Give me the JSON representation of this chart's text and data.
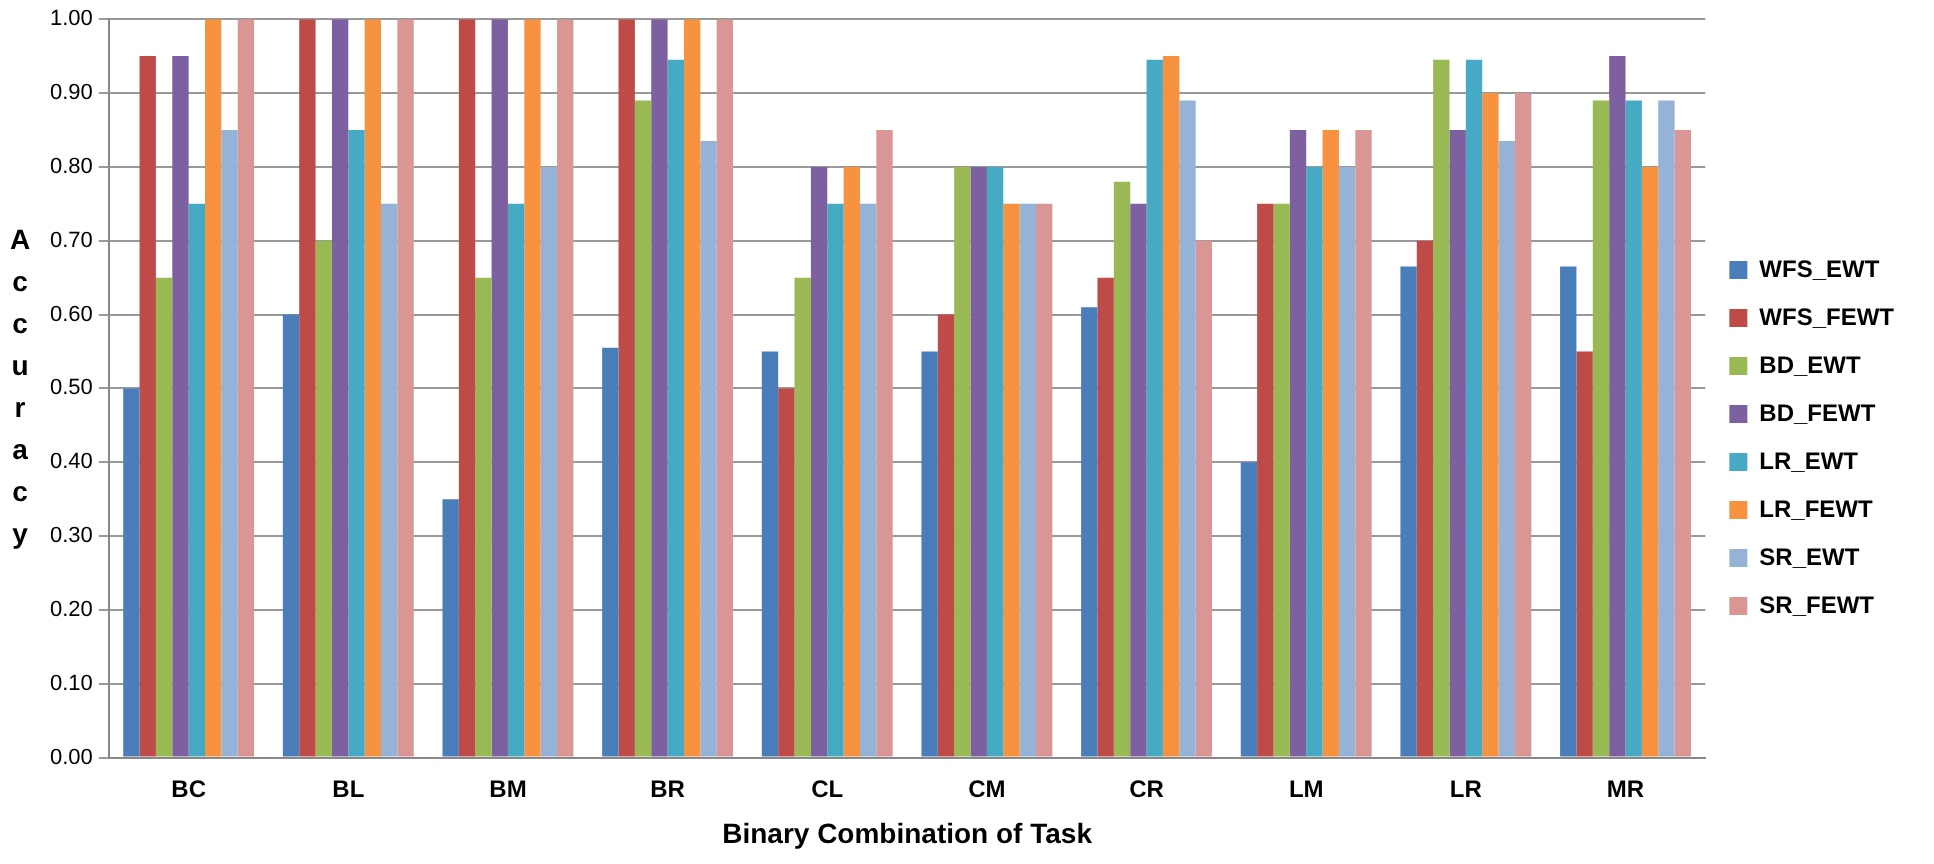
{
  "chart_data": {
    "type": "bar",
    "xlabel": "Binary Combination of Task",
    "ylabel": "Accuracy",
    "categories": [
      "BC",
      "BL",
      "BM",
      "BR",
      "CL",
      "CM",
      "CR",
      "LM",
      "LR",
      "MR"
    ],
    "series": [
      {
        "name": "WFS_EWT",
        "color": "#4a7ebb",
        "values": [
          0.5,
          0.6,
          0.35,
          0.555,
          0.55,
          0.55,
          0.61,
          0.4,
          0.665,
          0.665
        ]
      },
      {
        "name": "WFS_FEWT",
        "color": "#be4b48",
        "values": [
          0.95,
          1,
          1,
          1,
          0.5,
          0.6,
          0.65,
          0.75,
          0.7,
          0.55
        ]
      },
      {
        "name": "BD_EWT",
        "color": "#98b954",
        "values": [
          0.65,
          0.7,
          0.65,
          0.89,
          0.65,
          0.8,
          0.78,
          0.75,
          0.945,
          0.89
        ]
      },
      {
        "name": "BD_FEWT",
        "color": "#7d60a0",
        "values": [
          0.95,
          1,
          1,
          1,
          0.8,
          0.8,
          0.75,
          0.85,
          0.85,
          0.95
        ]
      },
      {
        "name": "LR_EWT",
        "color": "#46aac5",
        "values": [
          0.75,
          0.85,
          0.75,
          0.945,
          0.75,
          0.8,
          0.945,
          0.8,
          0.945,
          0.89
        ]
      },
      {
        "name": "LR_FEWT",
        "color": "#f69240",
        "values": [
          1,
          1,
          1,
          1,
          0.8,
          0.75,
          0.95,
          0.85,
          0.9,
          0.8
        ]
      },
      {
        "name": "SR_EWT",
        "color": "#95b3d7",
        "values": [
          0.85,
          0.75,
          0.8,
          0.835,
          0.75,
          0.75,
          0.89,
          0.8,
          0.835,
          0.89
        ]
      },
      {
        "name": "SR_FEWT",
        "color": "#d99694",
        "values": [
          1,
          1,
          1,
          1,
          0.85,
          0.75,
          0.7,
          0.85,
          0.9,
          0.85
        ]
      }
    ],
    "ylim": [
      0,
      1
    ],
    "yticks": [
      {
        "value": 0,
        "label": "0.00"
      },
      {
        "value": 0.1,
        "label": "0.10"
      },
      {
        "value": 0.2,
        "label": "0.20"
      },
      {
        "value": 0.3,
        "label": "0.30"
      },
      {
        "value": 0.4,
        "label": "0.40"
      },
      {
        "value": 0.5,
        "label": "0.50"
      },
      {
        "value": 0.6,
        "label": "0.60"
      },
      {
        "value": 0.7,
        "label": "0.70"
      },
      {
        "value": 0.8,
        "label": "0.80"
      },
      {
        "value": 0.9,
        "label": "0.90"
      },
      {
        "value": 1,
        "label": "1.00"
      }
    ],
    "grid": "y",
    "legend": "right"
  }
}
